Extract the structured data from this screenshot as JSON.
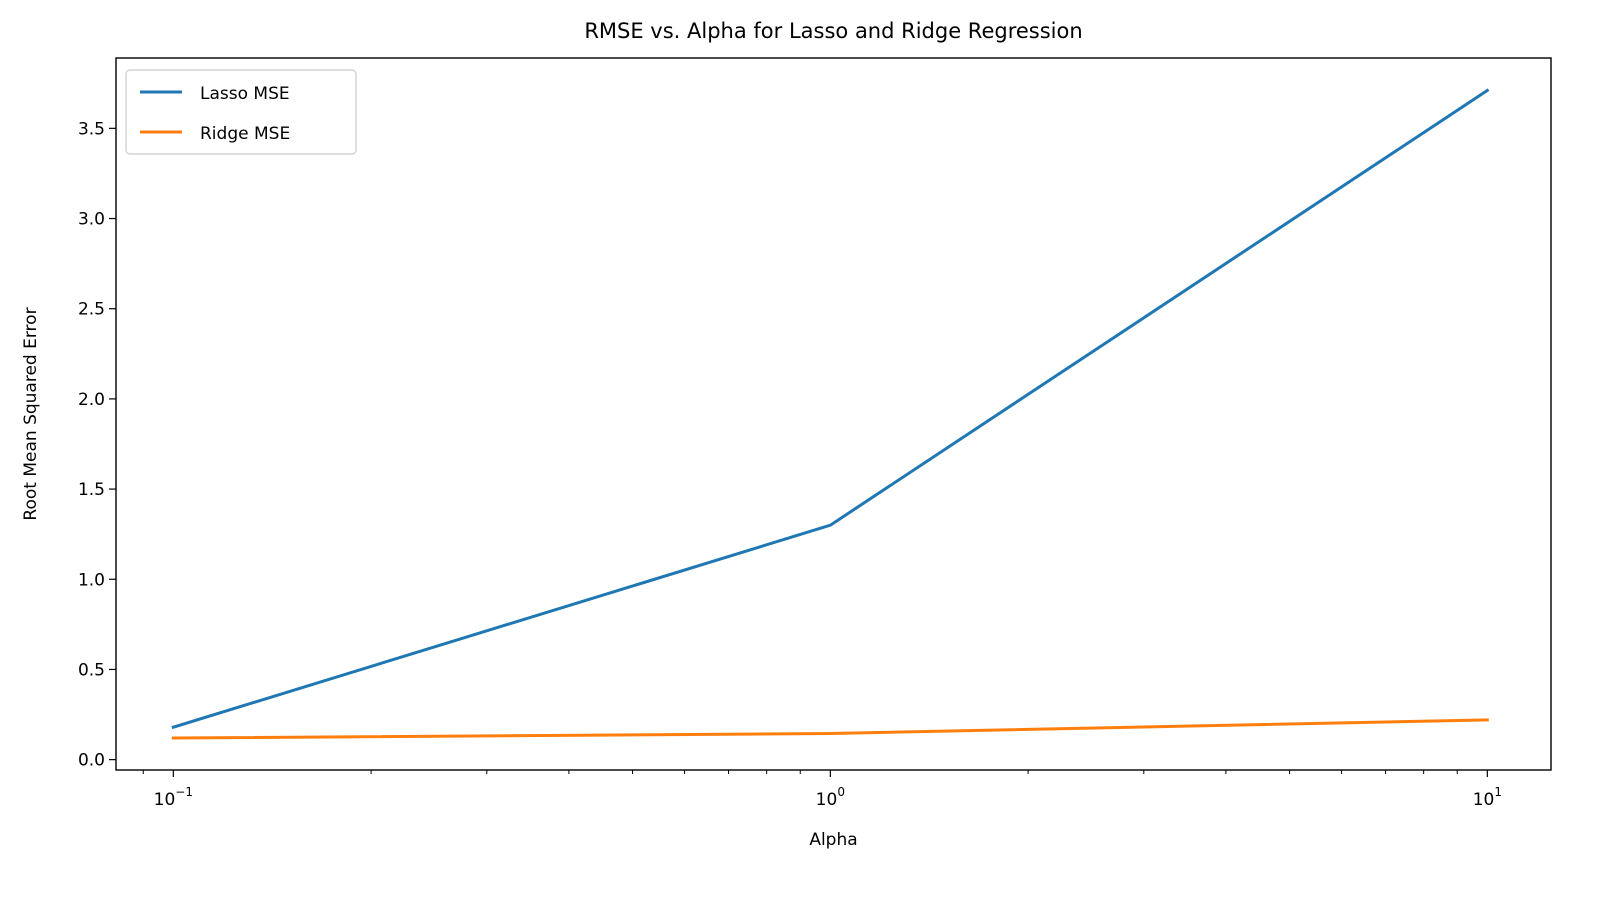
{
  "chart_data": {
    "type": "line",
    "title": "RMSE vs. Alpha for Lasso and Ridge Regression",
    "xlabel": "Alpha",
    "ylabel": "Root Mean Squared Error",
    "x_scale": "log",
    "xlim": [
      0.0818,
      12.5
    ],
    "ylim": [
      -0.0575,
      3.89
    ],
    "x": [
      0.1,
      1,
      10
    ],
    "x_ticks": [
      {
        "value": 0.1,
        "base": "10",
        "exp": "−1"
      },
      {
        "value": 1,
        "base": "10",
        "exp": "0"
      },
      {
        "value": 10,
        "base": "10",
        "exp": "1"
      }
    ],
    "y_ticks": [
      {
        "value": 0.0,
        "label": "0.0"
      },
      {
        "value": 0.5,
        "label": "0.5"
      },
      {
        "value": 1.0,
        "label": "1.0"
      },
      {
        "value": 1.5,
        "label": "1.5"
      },
      {
        "value": 2.0,
        "label": "2.0"
      },
      {
        "value": 2.5,
        "label": "2.5"
      },
      {
        "value": 3.0,
        "label": "3.0"
      },
      {
        "value": 3.5,
        "label": "3.5"
      }
    ],
    "series": [
      {
        "name": "Lasso MSE",
        "color": "#1f77b4",
        "values": [
          0.18,
          1.3,
          3.71
        ]
      },
      {
        "name": "Ridge MSE",
        "color": "#ff7f0e",
        "values": [
          0.12,
          0.145,
          0.22
        ]
      }
    ],
    "legend_position": "top-left",
    "grid": false
  }
}
